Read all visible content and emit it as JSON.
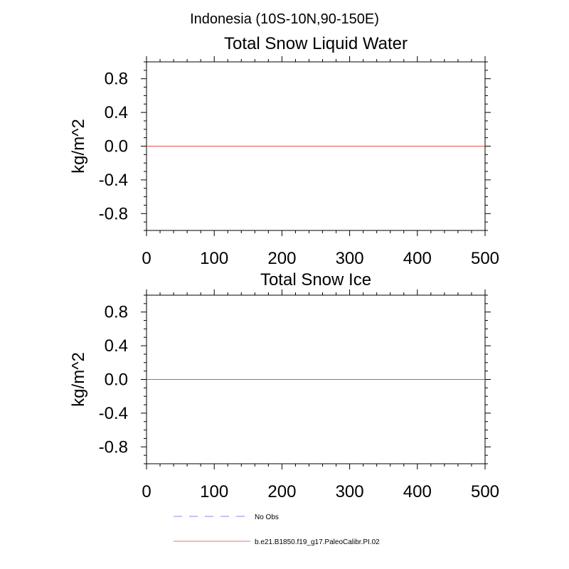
{
  "figure_title": "Indonesia (10S-10N,90-150E)",
  "chart_data": [
    {
      "type": "line",
      "title": "Total Snow Liquid Water",
      "xlabel": "",
      "ylabel": "kg/m^2",
      "xlim": [
        0,
        500
      ],
      "ylim": [
        -1,
        1
      ],
      "x_ticks": [
        0,
        100,
        200,
        300,
        400,
        500
      ],
      "x_tick_labels": [
        "0",
        "100",
        "200",
        "300",
        "400",
        "500"
      ],
      "y_ticks": [
        0.8,
        0.4,
        0.0,
        -0.4,
        -0.8
      ],
      "y_tick_labels": [
        "0.8",
        "0.4",
        "0.0",
        "-0.4",
        "-0.8"
      ],
      "grid": false,
      "series": [
        {
          "name": "b.e21.B1850.f19_g17.PaleoCalibr.PI.02",
          "color": "#e8504f",
          "style": "solid",
          "x": [
            0,
            500
          ],
          "y": [
            0.0,
            0.0
          ]
        }
      ]
    },
    {
      "type": "line",
      "title": "Total Snow Ice",
      "xlabel": "",
      "ylabel": "kg/m^2",
      "xlim": [
        0,
        500
      ],
      "ylim": [
        -1,
        1
      ],
      "x_ticks": [
        0,
        100,
        200,
        300,
        400,
        500
      ],
      "x_tick_labels": [
        "0",
        "100",
        "200",
        "300",
        "400",
        "500"
      ],
      "y_ticks": [
        0.8,
        0.4,
        0.0,
        -0.4,
        -0.8
      ],
      "y_tick_labels": [
        "0.8",
        "0.4",
        "0.0",
        "-0.4",
        "-0.8"
      ],
      "grid": false,
      "series": [
        {
          "name": "b.e21.B1850.f19_g17.PaleoCalibr.PI.02",
          "color": "#e8504f",
          "style": "solid",
          "x": [
            0,
            500
          ],
          "y": [
            0.0,
            0.0
          ]
        }
      ]
    }
  ],
  "legend": {
    "placement": "bottom",
    "entries": [
      {
        "label": "No Obs",
        "color": "#9f9ff2",
        "style": "dashed"
      },
      {
        "label": "b.e21.B1850.f19_g17.PaleoCalibr.PI.02",
        "color": "#f28a8a",
        "style": "solid"
      }
    ]
  }
}
